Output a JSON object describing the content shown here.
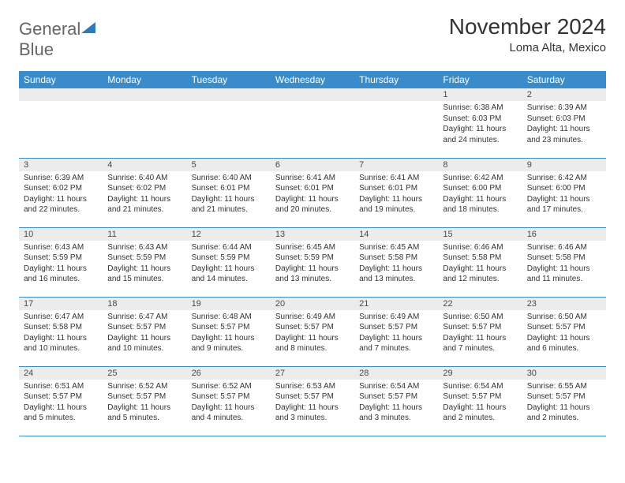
{
  "logo": {
    "text1": "General",
    "text2": "Blue",
    "text1_color": "#666666",
    "text2_color": "#2d7bbd",
    "icon_color": "#2d7bbd"
  },
  "header": {
    "month_title": "November 2024",
    "location": "Loma Alta, Mexico"
  },
  "colors": {
    "header_bg": "#3a8bc9",
    "header_text": "#ffffff",
    "daynum_bg": "#ececec",
    "border": "#3a8bc9",
    "body_text": "#333333"
  },
  "calendar": {
    "day_headers": [
      "Sunday",
      "Monday",
      "Tuesday",
      "Wednesday",
      "Thursday",
      "Friday",
      "Saturday"
    ],
    "weeks": [
      [
        {
          "num": "",
          "sunrise": "",
          "sunset": "",
          "daylight": ""
        },
        {
          "num": "",
          "sunrise": "",
          "sunset": "",
          "daylight": ""
        },
        {
          "num": "",
          "sunrise": "",
          "sunset": "",
          "daylight": ""
        },
        {
          "num": "",
          "sunrise": "",
          "sunset": "",
          "daylight": ""
        },
        {
          "num": "",
          "sunrise": "",
          "sunset": "",
          "daylight": ""
        },
        {
          "num": "1",
          "sunrise": "Sunrise: 6:38 AM",
          "sunset": "Sunset: 6:03 PM",
          "daylight": "Daylight: 11 hours and 24 minutes."
        },
        {
          "num": "2",
          "sunrise": "Sunrise: 6:39 AM",
          "sunset": "Sunset: 6:03 PM",
          "daylight": "Daylight: 11 hours and 23 minutes."
        }
      ],
      [
        {
          "num": "3",
          "sunrise": "Sunrise: 6:39 AM",
          "sunset": "Sunset: 6:02 PM",
          "daylight": "Daylight: 11 hours and 22 minutes."
        },
        {
          "num": "4",
          "sunrise": "Sunrise: 6:40 AM",
          "sunset": "Sunset: 6:02 PM",
          "daylight": "Daylight: 11 hours and 21 minutes."
        },
        {
          "num": "5",
          "sunrise": "Sunrise: 6:40 AM",
          "sunset": "Sunset: 6:01 PM",
          "daylight": "Daylight: 11 hours and 21 minutes."
        },
        {
          "num": "6",
          "sunrise": "Sunrise: 6:41 AM",
          "sunset": "Sunset: 6:01 PM",
          "daylight": "Daylight: 11 hours and 20 minutes."
        },
        {
          "num": "7",
          "sunrise": "Sunrise: 6:41 AM",
          "sunset": "Sunset: 6:01 PM",
          "daylight": "Daylight: 11 hours and 19 minutes."
        },
        {
          "num": "8",
          "sunrise": "Sunrise: 6:42 AM",
          "sunset": "Sunset: 6:00 PM",
          "daylight": "Daylight: 11 hours and 18 minutes."
        },
        {
          "num": "9",
          "sunrise": "Sunrise: 6:42 AM",
          "sunset": "Sunset: 6:00 PM",
          "daylight": "Daylight: 11 hours and 17 minutes."
        }
      ],
      [
        {
          "num": "10",
          "sunrise": "Sunrise: 6:43 AM",
          "sunset": "Sunset: 5:59 PM",
          "daylight": "Daylight: 11 hours and 16 minutes."
        },
        {
          "num": "11",
          "sunrise": "Sunrise: 6:43 AM",
          "sunset": "Sunset: 5:59 PM",
          "daylight": "Daylight: 11 hours and 15 minutes."
        },
        {
          "num": "12",
          "sunrise": "Sunrise: 6:44 AM",
          "sunset": "Sunset: 5:59 PM",
          "daylight": "Daylight: 11 hours and 14 minutes."
        },
        {
          "num": "13",
          "sunrise": "Sunrise: 6:45 AM",
          "sunset": "Sunset: 5:59 PM",
          "daylight": "Daylight: 11 hours and 13 minutes."
        },
        {
          "num": "14",
          "sunrise": "Sunrise: 6:45 AM",
          "sunset": "Sunset: 5:58 PM",
          "daylight": "Daylight: 11 hours and 13 minutes."
        },
        {
          "num": "15",
          "sunrise": "Sunrise: 6:46 AM",
          "sunset": "Sunset: 5:58 PM",
          "daylight": "Daylight: 11 hours and 12 minutes."
        },
        {
          "num": "16",
          "sunrise": "Sunrise: 6:46 AM",
          "sunset": "Sunset: 5:58 PM",
          "daylight": "Daylight: 11 hours and 11 minutes."
        }
      ],
      [
        {
          "num": "17",
          "sunrise": "Sunrise: 6:47 AM",
          "sunset": "Sunset: 5:58 PM",
          "daylight": "Daylight: 11 hours and 10 minutes."
        },
        {
          "num": "18",
          "sunrise": "Sunrise: 6:47 AM",
          "sunset": "Sunset: 5:57 PM",
          "daylight": "Daylight: 11 hours and 10 minutes."
        },
        {
          "num": "19",
          "sunrise": "Sunrise: 6:48 AM",
          "sunset": "Sunset: 5:57 PM",
          "daylight": "Daylight: 11 hours and 9 minutes."
        },
        {
          "num": "20",
          "sunrise": "Sunrise: 6:49 AM",
          "sunset": "Sunset: 5:57 PM",
          "daylight": "Daylight: 11 hours and 8 minutes."
        },
        {
          "num": "21",
          "sunrise": "Sunrise: 6:49 AM",
          "sunset": "Sunset: 5:57 PM",
          "daylight": "Daylight: 11 hours and 7 minutes."
        },
        {
          "num": "22",
          "sunrise": "Sunrise: 6:50 AM",
          "sunset": "Sunset: 5:57 PM",
          "daylight": "Daylight: 11 hours and 7 minutes."
        },
        {
          "num": "23",
          "sunrise": "Sunrise: 6:50 AM",
          "sunset": "Sunset: 5:57 PM",
          "daylight": "Daylight: 11 hours and 6 minutes."
        }
      ],
      [
        {
          "num": "24",
          "sunrise": "Sunrise: 6:51 AM",
          "sunset": "Sunset: 5:57 PM",
          "daylight": "Daylight: 11 hours and 5 minutes."
        },
        {
          "num": "25",
          "sunrise": "Sunrise: 6:52 AM",
          "sunset": "Sunset: 5:57 PM",
          "daylight": "Daylight: 11 hours and 5 minutes."
        },
        {
          "num": "26",
          "sunrise": "Sunrise: 6:52 AM",
          "sunset": "Sunset: 5:57 PM",
          "daylight": "Daylight: 11 hours and 4 minutes."
        },
        {
          "num": "27",
          "sunrise": "Sunrise: 6:53 AM",
          "sunset": "Sunset: 5:57 PM",
          "daylight": "Daylight: 11 hours and 3 minutes."
        },
        {
          "num": "28",
          "sunrise": "Sunrise: 6:54 AM",
          "sunset": "Sunset: 5:57 PM",
          "daylight": "Daylight: 11 hours and 3 minutes."
        },
        {
          "num": "29",
          "sunrise": "Sunrise: 6:54 AM",
          "sunset": "Sunset: 5:57 PM",
          "daylight": "Daylight: 11 hours and 2 minutes."
        },
        {
          "num": "30",
          "sunrise": "Sunrise: 6:55 AM",
          "sunset": "Sunset: 5:57 PM",
          "daylight": "Daylight: 11 hours and 2 minutes."
        }
      ]
    ]
  }
}
